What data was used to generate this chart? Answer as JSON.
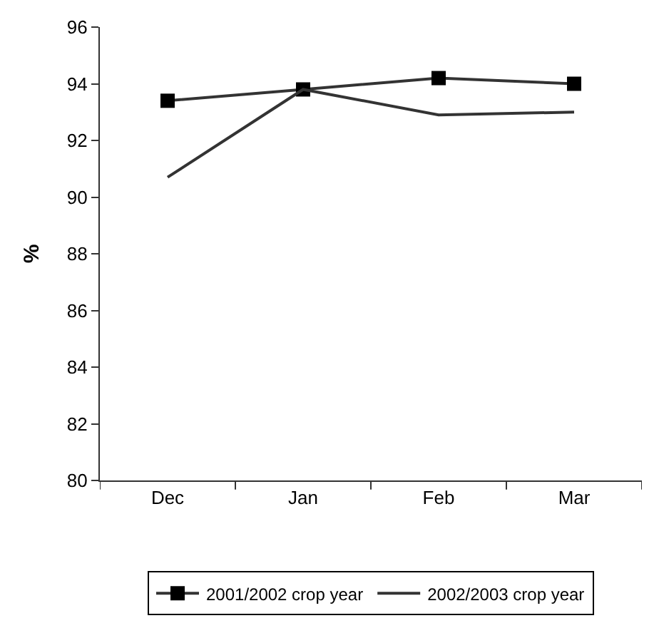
{
  "chart_data": {
    "type": "line",
    "ylabel": "%",
    "categories": [
      "Dec",
      "Jan",
      "Feb",
      "Mar"
    ],
    "ylim": [
      80,
      96
    ],
    "yticks": [
      80,
      82,
      84,
      86,
      88,
      90,
      92,
      94,
      96
    ],
    "legend": "bottom",
    "series": [
      {
        "name": "2001/2002 crop year",
        "color": "#000000",
        "values": [
          93.4,
          93.8,
          94.2,
          94.0
        ],
        "marker": "square"
      },
      {
        "name": "2002/2003 crop year",
        "color": "#333333",
        "values": [
          90.7,
          93.8,
          92.9,
          93.0
        ],
        "marker": "none"
      }
    ]
  }
}
